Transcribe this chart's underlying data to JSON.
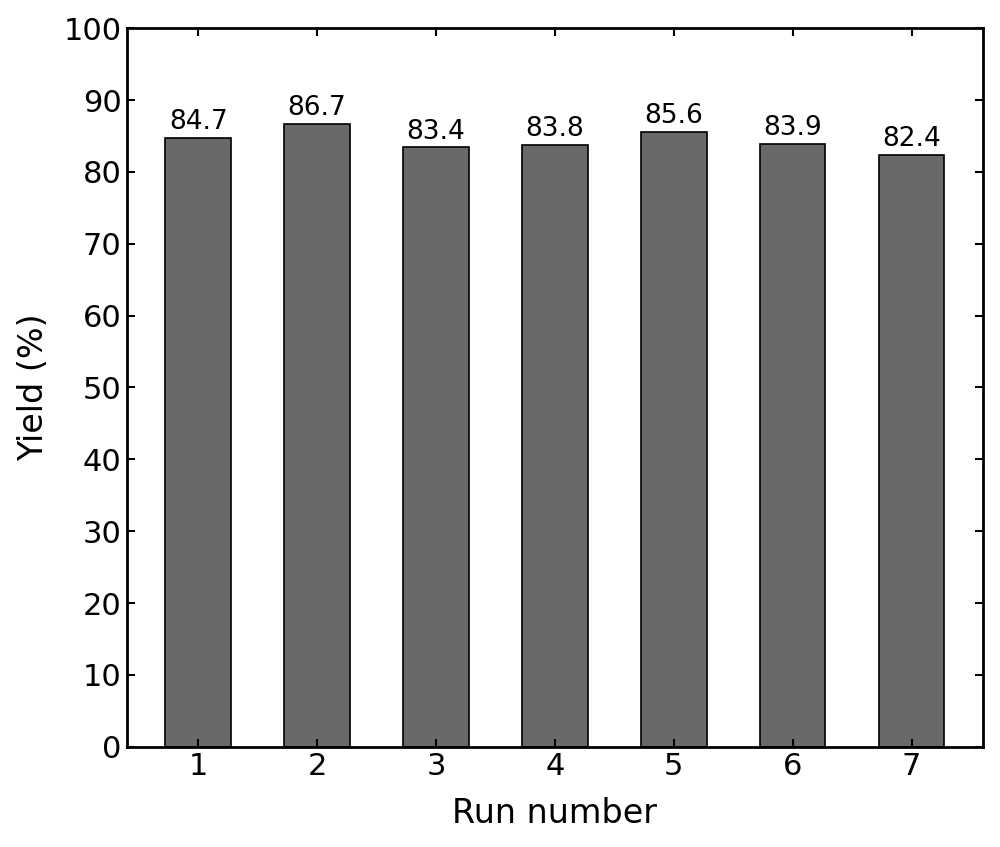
{
  "categories": [
    "1",
    "2",
    "3",
    "4",
    "5",
    "6",
    "7"
  ],
  "values": [
    84.7,
    86.7,
    83.4,
    83.8,
    85.6,
    83.9,
    82.4
  ],
  "bar_color": "#696969",
  "xlabel": "Run number",
  "ylabel": "Yield (%)",
  "ylim": [
    0,
    100
  ],
  "yticks": [
    0,
    10,
    20,
    30,
    40,
    50,
    60,
    70,
    80,
    90,
    100
  ],
  "xlabel_fontsize": 24,
  "ylabel_fontsize": 24,
  "tick_fontsize": 22,
  "label_fontsize": 19,
  "bar_width": 0.55,
  "edge_color": "black",
  "edge_linewidth": 1.2,
  "spine_linewidth": 2.0
}
